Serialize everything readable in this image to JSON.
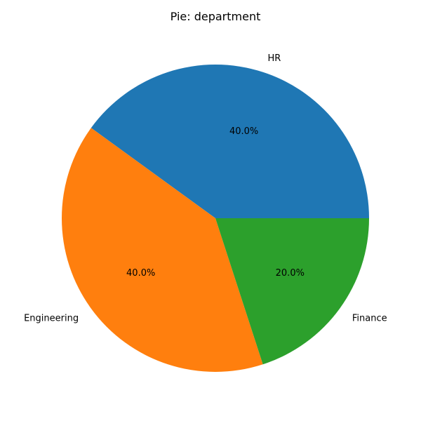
{
  "chart_data": {
    "type": "pie",
    "title": "Pie: department",
    "categories": [
      "HR",
      "Engineering",
      "Finance"
    ],
    "values": [
      40.0,
      40.0,
      20.0
    ],
    "percent_labels": [
      "40.0%",
      "40.0%",
      "20.0%"
    ],
    "colors": [
      "#1f77b4",
      "#ff7f0e",
      "#2ca02c"
    ],
    "start_angle_deg": 0,
    "direction": "counterclockwise",
    "legend": "none"
  }
}
